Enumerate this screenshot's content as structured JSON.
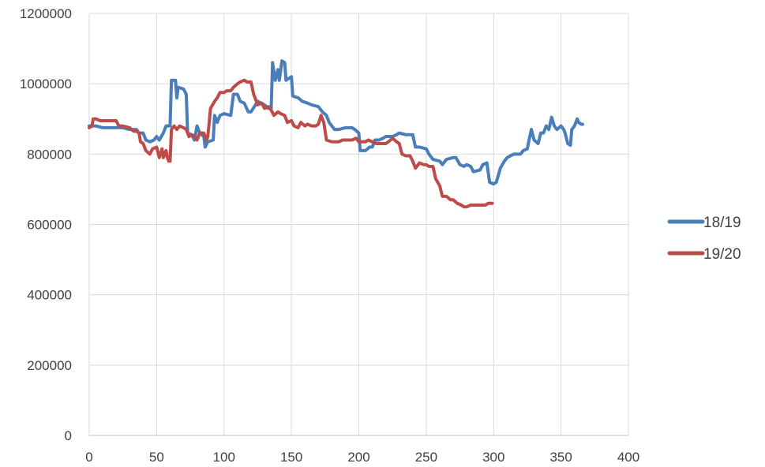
{
  "chart_data": {
    "type": "line",
    "title": "",
    "xlabel": "",
    "ylabel": "",
    "xlim": [
      0,
      400
    ],
    "ylim": [
      0,
      1200000
    ],
    "x_ticks": [
      "0",
      "50",
      "100",
      "150",
      "200",
      "250",
      "300",
      "350",
      "400"
    ],
    "y_ticks": [
      "0",
      "200000",
      "400000",
      "600000",
      "800000",
      "1000000",
      "1200000"
    ],
    "grid": true,
    "legend_position": "right",
    "series": [
      {
        "name": "18/19",
        "color": "#4a7ebb",
        "points": [
          [
            0,
            880000
          ],
          [
            5,
            880000
          ],
          [
            10,
            875000
          ],
          [
            20,
            875000
          ],
          [
            25,
            875000
          ],
          [
            30,
            870000
          ],
          [
            35,
            870000
          ],
          [
            37,
            860000
          ],
          [
            40,
            860000
          ],
          [
            42,
            840000
          ],
          [
            45,
            835000
          ],
          [
            48,
            840000
          ],
          [
            50,
            850000
          ],
          [
            52,
            840000
          ],
          [
            55,
            860000
          ],
          [
            57,
            880000
          ],
          [
            60,
            880000
          ],
          [
            61,
            1010000
          ],
          [
            64,
            1010000
          ],
          [
            65,
            960000
          ],
          [
            66,
            990000
          ],
          [
            70,
            985000
          ],
          [
            72,
            970000
          ],
          [
            73,
            860000
          ],
          [
            76,
            855000
          ],
          [
            78,
            840000
          ],
          [
            80,
            880000
          ],
          [
            82,
            860000
          ],
          [
            85,
            850000
          ],
          [
            86,
            820000
          ],
          [
            88,
            835000
          ],
          [
            92,
            840000
          ],
          [
            93,
            910000
          ],
          [
            95,
            890000
          ],
          [
            97,
            910000
          ],
          [
            100,
            915000
          ],
          [
            105,
            910000
          ],
          [
            107,
            970000
          ],
          [
            110,
            970000
          ],
          [
            112,
            950000
          ],
          [
            115,
            945000
          ],
          [
            118,
            920000
          ],
          [
            120,
            920000
          ],
          [
            125,
            950000
          ],
          [
            130,
            940000
          ],
          [
            133,
            930000
          ],
          [
            135,
            930000
          ],
          [
            136,
            1060000
          ],
          [
            138,
            1010000
          ],
          [
            140,
            1040000
          ],
          [
            141,
            1010000
          ],
          [
            143,
            1065000
          ],
          [
            145,
            1060000
          ],
          [
            146,
            1010000
          ],
          [
            148,
            1015000
          ],
          [
            150,
            1020000
          ],
          [
            151,
            965000
          ],
          [
            155,
            960000
          ],
          [
            158,
            950000
          ],
          [
            162,
            945000
          ],
          [
            165,
            940000
          ],
          [
            170,
            935000
          ],
          [
            173,
            920000
          ],
          [
            176,
            910000
          ],
          [
            178,
            890000
          ],
          [
            180,
            880000
          ],
          [
            182,
            870000
          ],
          [
            185,
            870000
          ],
          [
            190,
            875000
          ],
          [
            195,
            875000
          ],
          [
            197,
            870000
          ],
          [
            200,
            860000
          ],
          [
            201,
            810000
          ],
          [
            205,
            810000
          ],
          [
            208,
            820000
          ],
          [
            210,
            820000
          ],
          [
            212,
            840000
          ],
          [
            215,
            840000
          ],
          [
            218,
            845000
          ],
          [
            220,
            850000
          ],
          [
            225,
            850000
          ],
          [
            228,
            855000
          ],
          [
            230,
            860000
          ],
          [
            235,
            855000
          ],
          [
            240,
            855000
          ],
          [
            242,
            820000
          ],
          [
            245,
            820000
          ],
          [
            250,
            815000
          ],
          [
            252,
            800000
          ],
          [
            255,
            785000
          ],
          [
            260,
            780000
          ],
          [
            262,
            770000
          ],
          [
            265,
            785000
          ],
          [
            270,
            790000
          ],
          [
            272,
            790000
          ],
          [
            275,
            770000
          ],
          [
            278,
            765000
          ],
          [
            280,
            770000
          ],
          [
            283,
            765000
          ],
          [
            285,
            750000
          ],
          [
            290,
            755000
          ],
          [
            292,
            770000
          ],
          [
            295,
            775000
          ],
          [
            297,
            720000
          ],
          [
            300,
            715000
          ],
          [
            302,
            720000
          ],
          [
            305,
            760000
          ],
          [
            308,
            780000
          ],
          [
            310,
            790000
          ],
          [
            315,
            800000
          ],
          [
            320,
            800000
          ],
          [
            322,
            810000
          ],
          [
            325,
            815000
          ],
          [
            326,
            835000
          ],
          [
            328,
            870000
          ],
          [
            330,
            840000
          ],
          [
            333,
            830000
          ],
          [
            335,
            860000
          ],
          [
            337,
            860000
          ],
          [
            339,
            880000
          ],
          [
            341,
            870000
          ],
          [
            343,
            905000
          ],
          [
            345,
            880000
          ],
          [
            347,
            870000
          ],
          [
            350,
            880000
          ],
          [
            352,
            870000
          ],
          [
            353,
            860000
          ],
          [
            355,
            830000
          ],
          [
            357,
            825000
          ],
          [
            358,
            870000
          ],
          [
            360,
            880000
          ],
          [
            362,
            900000
          ],
          [
            363,
            890000
          ],
          [
            365,
            885000
          ],
          [
            366,
            885000
          ]
        ]
      },
      {
        "name": "19/20",
        "color": "#be4b48",
        "points": [
          [
            0,
            875000
          ],
          [
            2,
            880000
          ],
          [
            3,
            900000
          ],
          [
            5,
            900000
          ],
          [
            8,
            895000
          ],
          [
            12,
            895000
          ],
          [
            15,
            895000
          ],
          [
            20,
            895000
          ],
          [
            22,
            880000
          ],
          [
            25,
            880000
          ],
          [
            30,
            875000
          ],
          [
            33,
            865000
          ],
          [
            35,
            865000
          ],
          [
            37,
            860000
          ],
          [
            38,
            835000
          ],
          [
            40,
            830000
          ],
          [
            42,
            810000
          ],
          [
            45,
            800000
          ],
          [
            47,
            815000
          ],
          [
            50,
            820000
          ],
          [
            52,
            790000
          ],
          [
            54,
            815000
          ],
          [
            55,
            790000
          ],
          [
            57,
            810000
          ],
          [
            58,
            790000
          ],
          [
            59,
            780000
          ],
          [
            60,
            780000
          ],
          [
            61,
            870000
          ],
          [
            63,
            880000
          ],
          [
            65,
            870000
          ],
          [
            67,
            880000
          ],
          [
            70,
            875000
          ],
          [
            72,
            870000
          ],
          [
            74,
            850000
          ],
          [
            76,
            855000
          ],
          [
            78,
            850000
          ],
          [
            80,
            840000
          ],
          [
            82,
            860000
          ],
          [
            85,
            860000
          ],
          [
            87,
            840000
          ],
          [
            88,
            850000
          ],
          [
            90,
            930000
          ],
          [
            93,
            950000
          ],
          [
            95,
            960000
          ],
          [
            97,
            975000
          ],
          [
            100,
            975000
          ],
          [
            102,
            980000
          ],
          [
            105,
            980000
          ],
          [
            107,
            990000
          ],
          [
            110,
            1000000
          ],
          [
            112,
            1005000
          ],
          [
            115,
            1010000
          ],
          [
            117,
            1005000
          ],
          [
            120,
            1005000
          ],
          [
            122,
            970000
          ],
          [
            125,
            940000
          ],
          [
            128,
            945000
          ],
          [
            130,
            930000
          ],
          [
            133,
            935000
          ],
          [
            135,
            925000
          ],
          [
            137,
            910000
          ],
          [
            140,
            920000
          ],
          [
            142,
            915000
          ],
          [
            145,
            910000
          ],
          [
            147,
            890000
          ],
          [
            150,
            895000
          ],
          [
            152,
            880000
          ],
          [
            155,
            875000
          ],
          [
            157,
            890000
          ],
          [
            160,
            880000
          ],
          [
            162,
            885000
          ],
          [
            165,
            880000
          ],
          [
            168,
            880000
          ],
          [
            170,
            885000
          ],
          [
            172,
            910000
          ],
          [
            174,
            890000
          ],
          [
            176,
            840000
          ],
          [
            180,
            835000
          ],
          [
            185,
            835000
          ],
          [
            188,
            840000
          ],
          [
            192,
            840000
          ],
          [
            195,
            840000
          ],
          [
            198,
            845000
          ],
          [
            200,
            835000
          ],
          [
            202,
            835000
          ],
          [
            205,
            835000
          ],
          [
            207,
            840000
          ],
          [
            210,
            835000
          ],
          [
            213,
            830000
          ],
          [
            216,
            830000
          ],
          [
            220,
            830000
          ],
          [
            222,
            835000
          ],
          [
            225,
            845000
          ],
          [
            228,
            835000
          ],
          [
            230,
            830000
          ],
          [
            232,
            800000
          ],
          [
            235,
            795000
          ],
          [
            238,
            795000
          ],
          [
            240,
            780000
          ],
          [
            242,
            760000
          ],
          [
            245,
            775000
          ],
          [
            248,
            770000
          ],
          [
            250,
            770000
          ],
          [
            252,
            765000
          ],
          [
            255,
            765000
          ],
          [
            257,
            730000
          ],
          [
            260,
            710000
          ],
          [
            262,
            680000
          ],
          [
            265,
            680000
          ],
          [
            268,
            670000
          ],
          [
            270,
            670000
          ],
          [
            273,
            660000
          ],
          [
            276,
            655000
          ],
          [
            278,
            650000
          ],
          [
            280,
            650000
          ],
          [
            283,
            655000
          ],
          [
            286,
            655000
          ],
          [
            290,
            655000
          ],
          [
            294,
            655000
          ],
          [
            296,
            660000
          ],
          [
            299,
            660000
          ]
        ]
      }
    ]
  }
}
